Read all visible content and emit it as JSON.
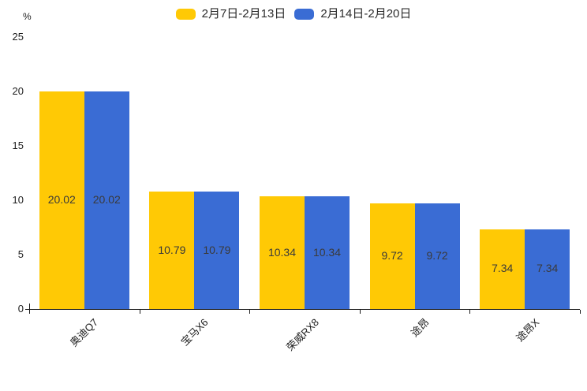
{
  "chart_data": {
    "type": "bar",
    "title": "",
    "categories": [
      "奥迪Q7",
      "宝马X6",
      "荣威RX8",
      "途昂",
      "途昂X"
    ],
    "series": [
      {
        "name": "2月7日-2月13日",
        "color": "#FFC905",
        "values": [
          20.02,
          10.79,
          10.34,
          9.72,
          7.34
        ]
      },
      {
        "name": "2月14日-2月20日",
        "color": "#3A6CD4",
        "values": [
          20.02,
          10.79,
          10.34,
          9.72,
          7.34
        ]
      }
    ],
    "xlabel": "",
    "ylabel": "%",
    "ylim": [
      0,
      25
    ],
    "yticks": [
      0,
      5,
      10,
      15,
      20,
      25
    ],
    "grid": false,
    "legend_position": "top-center",
    "data_labels": "inside-center",
    "data_label_color": "#3a3a3a",
    "axis_color": "#1a1a1a"
  },
  "legend": {
    "items": [
      {
        "label": "2月7日-2月13日",
        "color": "#FFC905"
      },
      {
        "label": "2月14日-2月20日",
        "color": "#3A6CD4"
      }
    ]
  },
  "y_axis": {
    "unit": "%"
  }
}
